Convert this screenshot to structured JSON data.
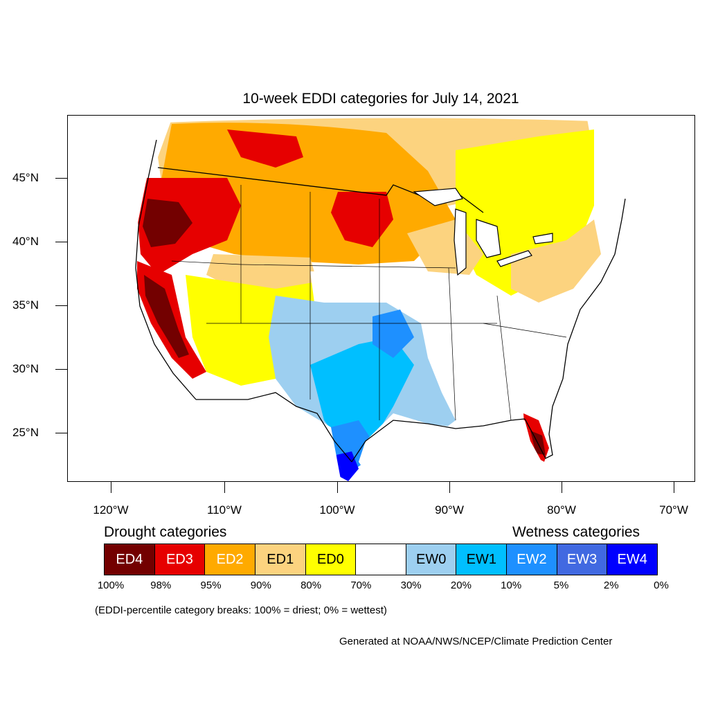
{
  "title": "10-week EDDI categories for July 14, 2021",
  "lat_labels": [
    "45°N",
    "40°N",
    "35°N",
    "30°N",
    "25°N"
  ],
  "lon_labels": [
    "120°W",
    "110°W",
    "100°W",
    "90°W",
    "80°W",
    "70°W"
  ],
  "legend": {
    "drought_heading": "Drought categories",
    "wetness_heading": "Wetness categories",
    "categories": [
      {
        "label": "ED4",
        "color": "#730000",
        "text_color": "#ffffff"
      },
      {
        "label": "ED3",
        "color": "#e60000",
        "text_color": "#ffffff"
      },
      {
        "label": "ED2",
        "color": "#ffaa00",
        "text_color": "#ffffff"
      },
      {
        "label": "ED1",
        "color": "#fcd37f",
        "text_color": "#000000"
      },
      {
        "label": "ED0",
        "color": "#ffff00",
        "text_color": "#000000"
      },
      {
        "label": "",
        "color": "#ffffff",
        "text_color": "#000000"
      },
      {
        "label": "EW0",
        "color": "#9dcff0",
        "text_color": "#000000"
      },
      {
        "label": "EW1",
        "color": "#00bfff",
        "text_color": "#000000"
      },
      {
        "label": "EW2",
        "color": "#1e90ff",
        "text_color": "#ffffff"
      },
      {
        "label": "EW3",
        "color": "#4169e1",
        "text_color": "#ffffff"
      },
      {
        "label": "EW4",
        "color": "#0000ff",
        "text_color": "#ffffff"
      }
    ],
    "percentiles": [
      "100%",
      "98%",
      "95%",
      "90%",
      "80%",
      "70%",
      "30%",
      "20%",
      "10%",
      "5%",
      "2%",
      "0%"
    ]
  },
  "note": "(EDDI-percentile category breaks: 100% = driest; 0% = wettest)",
  "credit": "Generated at NOAA/NWS/NCEP/Climate Prediction Center"
}
